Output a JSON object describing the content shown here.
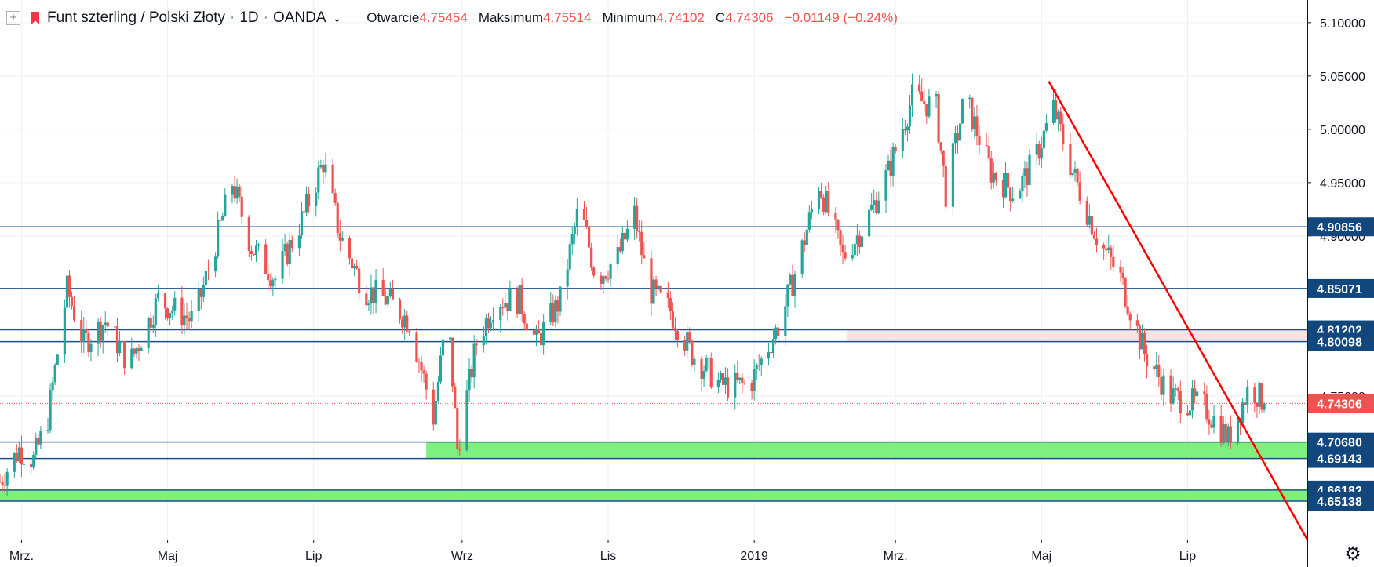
{
  "legend": {
    "symbol": "Funt szterling / Polski Złoty",
    "interval": "1D",
    "exchange": "OANDA",
    "open_label": "Otwarcie",
    "open_value": "4.75454",
    "high_label": "Maksimum",
    "high_value": "4.75514",
    "low_label": "Minimum",
    "low_value": "4.74102",
    "close_label": "C",
    "close_value": "4.74306",
    "change": "−0.01149 (−0.24%)",
    "plus_icon": "plus-square-icon",
    "flag_icon": "bookmark-flag-icon",
    "dropdown_icon": "chevron-down-icon"
  },
  "settings_icon": "gear-icon",
  "colors": {
    "up": "#26a69a",
    "down": "#ef5350",
    "hline": "#1a4f8b",
    "label_bg": "#12477d",
    "price_label_bg": "#ef5350",
    "zone_green": "#7ff07f",
    "zone_pink": "#f7e3e3",
    "trend": "#ff0000"
  },
  "chart_data": {
    "type": "candlestick",
    "title": "Funt szterling / Polski Złoty · 1D · OANDA",
    "x_start": "2018-02-20",
    "x_end": "2019-08-20",
    "ylim": [
      4.6154,
      5.1212
    ],
    "y_ticks": [
      "5.10000",
      "5.05000",
      "5.00000",
      "4.95000",
      "4.90000",
      "4.75000"
    ],
    "x_ticks": [
      {
        "label": "Mrz.",
        "date": "2018-03-01"
      },
      {
        "label": "Maj",
        "date": "2018-05-01"
      },
      {
        "label": "Lip",
        "date": "2018-07-01"
      },
      {
        "label": "Wrz",
        "date": "2018-09-01"
      },
      {
        "label": "Lis",
        "date": "2018-11-01"
      },
      {
        "label": "2019",
        "date": "2019-01-01"
      },
      {
        "label": "Mrz.",
        "date": "2019-03-01"
      },
      {
        "label": "Maj",
        "date": "2019-05-01"
      },
      {
        "label": "Lip",
        "date": "2019-07-01"
      }
    ],
    "anchors": [
      {
        "date": "2018-02-20",
        "price": 4.67
      },
      {
        "date": "2018-02-28",
        "price": 4.7
      },
      {
        "date": "2018-03-06",
        "price": 4.69
      },
      {
        "date": "2018-03-12",
        "price": 4.73
      },
      {
        "date": "2018-03-20",
        "price": 4.85
      },
      {
        "date": "2018-03-27",
        "price": 4.8
      },
      {
        "date": "2018-04-05",
        "price": 4.82
      },
      {
        "date": "2018-04-15",
        "price": 4.78
      },
      {
        "date": "2018-04-27",
        "price": 4.84
      },
      {
        "date": "2018-05-12",
        "price": 4.82
      },
      {
        "date": "2018-05-28",
        "price": 4.95
      },
      {
        "date": "2018-06-05",
        "price": 4.89
      },
      {
        "date": "2018-06-15",
        "price": 4.86
      },
      {
        "date": "2018-06-27",
        "price": 4.92
      },
      {
        "date": "2018-07-05",
        "price": 4.97
      },
      {
        "date": "2018-07-12",
        "price": 4.9
      },
      {
        "date": "2018-07-22",
        "price": 4.85
      },
      {
        "date": "2018-08-01",
        "price": 4.84
      },
      {
        "date": "2018-08-10",
        "price": 4.82
      },
      {
        "date": "2018-08-20",
        "price": 4.73
      },
      {
        "date": "2018-08-26",
        "price": 4.83
      },
      {
        "date": "2018-08-30",
        "price": 4.7
      },
      {
        "date": "2018-09-07",
        "price": 4.8
      },
      {
        "date": "2018-09-15",
        "price": 4.84
      },
      {
        "date": "2018-09-25",
        "price": 4.84
      },
      {
        "date": "2018-10-02",
        "price": 4.8
      },
      {
        "date": "2018-10-12",
        "price": 4.84
      },
      {
        "date": "2018-10-20",
        "price": 4.93
      },
      {
        "date": "2018-10-27",
        "price": 4.86
      },
      {
        "date": "2018-11-05",
        "price": 4.88
      },
      {
        "date": "2018-11-12",
        "price": 4.92
      },
      {
        "date": "2018-11-18",
        "price": 4.85
      },
      {
        "date": "2018-11-27",
        "price": 4.83
      },
      {
        "date": "2018-12-06",
        "price": 4.79
      },
      {
        "date": "2018-12-18",
        "price": 4.76
      },
      {
        "date": "2018-12-30",
        "price": 4.76
      },
      {
        "date": "2019-01-12",
        "price": 4.82
      },
      {
        "date": "2019-01-20",
        "price": 4.88
      },
      {
        "date": "2019-01-28",
        "price": 4.95
      },
      {
        "date": "2019-02-07",
        "price": 4.88
      },
      {
        "date": "2019-02-16",
        "price": 4.91
      },
      {
        "date": "2019-02-26",
        "price": 4.96
      },
      {
        "date": "2019-03-08",
        "price": 5.03
      },
      {
        "date": "2019-03-18",
        "price": 5.02
      },
      {
        "date": "2019-03-22",
        "price": 4.94
      },
      {
        "date": "2019-03-30",
        "price": 5.03
      },
      {
        "date": "2019-04-10",
        "price": 4.96
      },
      {
        "date": "2019-04-20",
        "price": 4.94
      },
      {
        "date": "2019-04-28",
        "price": 4.97
      },
      {
        "date": "2019-05-06",
        "price": 5.02
      },
      {
        "date": "2019-05-14",
        "price": 4.96
      },
      {
        "date": "2019-05-24",
        "price": 4.9
      },
      {
        "date": "2019-06-03",
        "price": 4.86
      },
      {
        "date": "2019-06-13",
        "price": 4.79
      },
      {
        "date": "2019-06-24",
        "price": 4.75
      },
      {
        "date": "2019-07-08",
        "price": 4.74
      },
      {
        "date": "2019-07-18",
        "price": 4.71
      },
      {
        "date": "2019-07-27",
        "price": 4.76
      },
      {
        "date": "2019-08-02",
        "price": 4.743
      }
    ],
    "horizontal_levels": [
      {
        "label": "4.90856",
        "value": 4.90856
      },
      {
        "label": "4.85071",
        "value": 4.85071
      },
      {
        "label": "4.81202",
        "value": 4.81202
      },
      {
        "label": "4.80098",
        "value": 4.80098
      },
      {
        "label": "4.70680",
        "value": 4.7068
      },
      {
        "label": "4.69143",
        "value": 4.69143
      },
      {
        "label": "4.66182",
        "value": 4.66182
      },
      {
        "label": "4.65138",
        "value": 4.65138
      }
    ],
    "zones": [
      {
        "color": "green",
        "from_date": "2018-08-17",
        "y1": 4.69143,
        "y2": 4.7068
      },
      {
        "color": "green",
        "from_date": "2018-02-20",
        "y1": 4.65138,
        "y2": 4.66182
      },
      {
        "color": "pink",
        "from_date": "2019-02-09",
        "y1": 4.80098,
        "y2": 4.81202
      }
    ],
    "trendline": {
      "start_date": "2019-05-04",
      "start_price": 5.045,
      "end_date": "2019-08-20",
      "end_price": 4.6154
    },
    "last_price_label": "4.74306",
    "last_price": 4.74306
  }
}
